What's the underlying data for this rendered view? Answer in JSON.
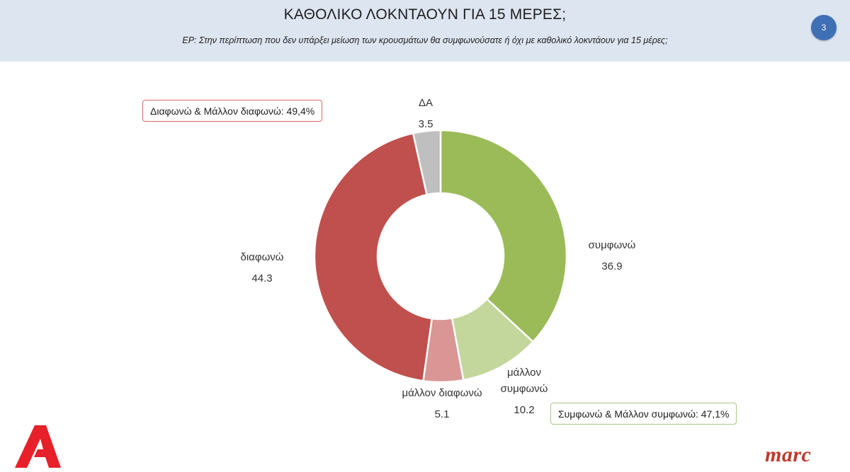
{
  "header": {
    "title": "ΚΑΘΟΛΙΚΟ ΛΟΚΝΤΑΟΥΝ ΓΙΑ 15 ΜΕΡΕΣ;",
    "subtitle": "ΕΡ: Στην περίπτωση που δεν υπάρξει μείωση των κρουσμάτων θα συμφωνούσατε ή όχι  με καθολικό λοκντάουν για 15 μέρες;",
    "page_number": "3"
  },
  "callouts": {
    "disagree_total": "Διαφωνώ & Μάλλον διαφωνώ: 49,4%",
    "agree_total": "Συμφωνώ & Μάλλον συμφωνώ: 47,1%"
  },
  "brand": {
    "logo_text": "marc",
    "accent": "#c0392b"
  },
  "chart_data": {
    "type": "pie",
    "donut": true,
    "title": "ΚΑΘΟΛΙΚΟ ΛΟΚΝΤΑΟΥΝ ΓΙΑ 15 ΜΕΡΕΣ;",
    "categories": [
      "συμφωνώ",
      "μάλλον συμφωνώ",
      "μάλλον διαφωνώ",
      "διαφωνώ",
      "ΔΑ"
    ],
    "label_lines": [
      [
        "συμφωνώ"
      ],
      [
        "μάλλον",
        "συμφωνώ"
      ],
      [
        "μάλλον διαφωνώ"
      ],
      [
        "διαφωνώ"
      ],
      [
        "ΔΑ"
      ]
    ],
    "values": [
      36.9,
      10.2,
      5.1,
      44.3,
      3.5
    ],
    "value_labels": [
      "36.9",
      "10.2",
      "5.1",
      "44.3",
      "3.5"
    ],
    "colors": [
      "#9bbb59",
      "#c3d69b",
      "#d99694",
      "#c0504d",
      "#bfbfbf"
    ],
    "start_angle": "top, clockwise",
    "legend": "none"
  }
}
